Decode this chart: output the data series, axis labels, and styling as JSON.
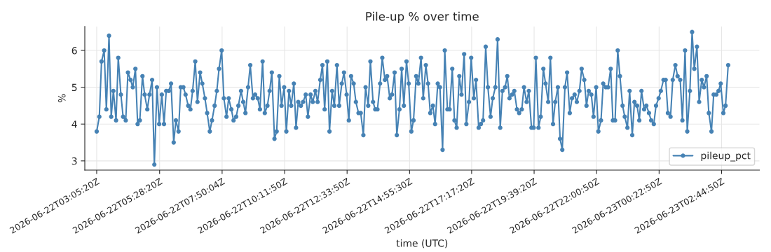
{
  "chart_data": {
    "type": "line",
    "title": "Pile-up % over time",
    "xlabel": "time (UTC)",
    "ylabel": "%",
    "x": [
      "2026-06-22T03:05",
      "2026-06-22T03:11",
      "2026-06-22T03:16",
      "2026-06-22T03:22",
      "2026-06-22T03:27",
      "2026-06-22T03:33",
      "2026-06-22T03:38",
      "2026-06-22T03:43",
      "2026-06-22T03:49",
      "2026-06-22T03:54",
      "2026-06-22T04:00",
      "2026-06-22T04:05",
      "2026-06-22T04:11",
      "2026-06-22T04:16",
      "2026-06-22T04:22",
      "2026-06-22T04:27",
      "2026-06-22T04:33",
      "2026-06-22T04:38",
      "2026-06-22T04:43",
      "2026-06-22T04:49",
      "2026-06-22T04:54",
      "2026-06-22T05:00",
      "2026-06-22T05:05",
      "2026-06-22T05:11",
      "2026-06-22T05:16",
      "2026-06-22T05:22",
      "2026-06-22T05:27",
      "2026-06-22T05:33",
      "2026-06-22T05:38",
      "2026-06-22T05:43",
      "2026-06-22T05:49",
      "2026-06-22T05:54",
      "2026-06-22T06:00",
      "2026-06-22T06:05",
      "2026-06-22T06:11",
      "2026-06-22T06:16",
      "2026-06-22T06:22",
      "2026-06-22T06:27",
      "2026-06-22T06:33",
      "2026-06-22T06:38",
      "2026-06-22T06:43",
      "2026-06-22T06:49",
      "2026-06-22T06:54",
      "2026-06-22T07:00",
      "2026-06-22T07:05",
      "2026-06-22T07:11",
      "2026-06-22T07:16",
      "2026-06-22T07:22",
      "2026-06-22T07:27",
      "2026-06-22T07:33",
      "2026-06-22T07:38",
      "2026-06-22T07:43",
      "2026-06-22T07:49",
      "2026-06-22T07:54",
      "2026-06-22T08:00",
      "2026-06-22T08:05",
      "2026-06-22T08:11",
      "2026-06-22T08:16",
      "2026-06-22T08:22",
      "2026-06-22T08:27",
      "2026-06-22T08:33",
      "2026-06-22T08:38",
      "2026-06-22T08:43",
      "2026-06-22T08:49",
      "2026-06-22T08:54",
      "2026-06-22T09:00",
      "2026-06-22T09:05",
      "2026-06-22T09:11",
      "2026-06-22T09:16",
      "2026-06-22T09:22",
      "2026-06-22T09:27",
      "2026-06-22T09:33",
      "2026-06-22T09:38",
      "2026-06-22T09:43",
      "2026-06-22T09:49",
      "2026-06-22T09:54",
      "2026-06-22T10:00",
      "2026-06-22T10:05",
      "2026-06-22T10:11",
      "2026-06-22T10:16",
      "2026-06-22T10:22",
      "2026-06-22T10:27",
      "2026-06-22T10:33",
      "2026-06-22T10:38",
      "2026-06-22T10:43",
      "2026-06-22T10:49",
      "2026-06-22T10:54",
      "2026-06-22T11:00",
      "2026-06-22T11:05",
      "2026-06-22T11:11",
      "2026-06-22T11:16",
      "2026-06-22T11:22",
      "2026-06-22T11:27",
      "2026-06-22T11:33",
      "2026-06-22T11:38",
      "2026-06-22T11:43",
      "2026-06-22T11:49",
      "2026-06-22T11:54",
      "2026-06-22T12:00",
      "2026-06-22T12:05",
      "2026-06-22T12:11",
      "2026-06-22T12:16",
      "2026-06-22T12:22",
      "2026-06-22T12:27",
      "2026-06-22T12:33",
      "2026-06-22T12:38",
      "2026-06-22T12:43",
      "2026-06-22T12:49",
      "2026-06-22T12:54",
      "2026-06-22T13:00",
      "2026-06-22T13:05",
      "2026-06-22T13:11",
      "2026-06-22T13:16",
      "2026-06-22T13:22",
      "2026-06-22T13:27",
      "2026-06-22T13:33",
      "2026-06-22T13:38",
      "2026-06-22T13:43",
      "2026-06-22T13:49",
      "2026-06-22T13:54",
      "2026-06-22T14:00",
      "2026-06-22T14:05",
      "2026-06-22T14:11",
      "2026-06-22T14:16",
      "2026-06-22T14:22",
      "2026-06-22T14:27",
      "2026-06-22T14:33",
      "2026-06-22T14:38",
      "2026-06-22T14:43",
      "2026-06-22T14:49",
      "2026-06-22T14:54",
      "2026-06-22T15:00",
      "2026-06-22T15:05",
      "2026-06-22T15:11",
      "2026-06-22T15:16",
      "2026-06-22T15:22",
      "2026-06-22T15:27",
      "2026-06-22T15:33",
      "2026-06-22T15:38",
      "2026-06-22T15:43",
      "2026-06-22T15:49",
      "2026-06-22T15:54",
      "2026-06-22T16:00",
      "2026-06-22T16:05",
      "2026-06-22T16:11",
      "2026-06-22T16:16",
      "2026-06-22T16:22",
      "2026-06-22T16:27",
      "2026-06-22T16:33",
      "2026-06-22T16:38",
      "2026-06-22T16:43",
      "2026-06-22T16:49",
      "2026-06-22T16:54",
      "2026-06-22T17:00",
      "2026-06-22T17:05",
      "2026-06-22T17:11",
      "2026-06-22T17:16",
      "2026-06-22T17:22",
      "2026-06-22T17:27",
      "2026-06-22T17:33",
      "2026-06-22T17:38",
      "2026-06-22T17:43",
      "2026-06-22T17:49",
      "2026-06-22T17:54",
      "2026-06-22T18:00",
      "2026-06-22T18:05",
      "2026-06-22T18:11",
      "2026-06-22T18:16",
      "2026-06-22T18:22",
      "2026-06-22T18:27",
      "2026-06-22T18:33",
      "2026-06-22T18:38",
      "2026-06-22T18:43",
      "2026-06-22T18:49",
      "2026-06-22T18:54",
      "2026-06-22T19:00",
      "2026-06-22T19:05",
      "2026-06-22T19:11",
      "2026-06-22T19:16",
      "2026-06-22T19:22",
      "2026-06-22T19:27",
      "2026-06-22T19:33",
      "2026-06-22T19:38",
      "2026-06-22T19:43",
      "2026-06-22T19:49",
      "2026-06-22T19:54",
      "2026-06-22T20:00",
      "2026-06-22T20:05",
      "2026-06-22T20:11",
      "2026-06-22T20:16",
      "2026-06-22T20:22",
      "2026-06-22T20:27",
      "2026-06-22T20:33",
      "2026-06-22T20:38",
      "2026-06-22T20:43",
      "2026-06-22T20:49",
      "2026-06-22T20:54",
      "2026-06-22T21:00",
      "2026-06-22T21:05",
      "2026-06-22T21:11",
      "2026-06-22T21:16",
      "2026-06-22T21:22",
      "2026-06-22T21:27",
      "2026-06-22T21:33",
      "2026-06-22T21:38",
      "2026-06-22T21:43",
      "2026-06-22T21:49",
      "2026-06-22T21:54",
      "2026-06-22T22:00",
      "2026-06-22T22:05",
      "2026-06-22T22:11",
      "2026-06-22T22:16",
      "2026-06-22T22:22",
      "2026-06-22T22:27",
      "2026-06-22T22:33",
      "2026-06-22T22:38",
      "2026-06-22T22:43",
      "2026-06-22T22:49",
      "2026-06-22T22:54",
      "2026-06-22T23:00",
      "2026-06-22T23:05",
      "2026-06-22T23:11",
      "2026-06-22T23:16",
      "2026-06-22T23:22",
      "2026-06-22T23:27",
      "2026-06-22T23:33",
      "2026-06-22T23:38",
      "2026-06-22T23:43",
      "2026-06-22T23:49",
      "2026-06-22T23:54",
      "2026-06-23T00:00",
      "2026-06-23T00:05",
      "2026-06-23T00:11",
      "2026-06-23T00:16",
      "2026-06-23T00:22",
      "2026-06-23T00:27",
      "2026-06-23T00:33",
      "2026-06-23T00:38",
      "2026-06-23T00:43",
      "2026-06-23T00:49",
      "2026-06-23T00:54",
      "2026-06-23T01:00",
      "2026-06-23T01:05",
      "2026-06-23T01:11",
      "2026-06-23T01:16",
      "2026-06-23T01:22",
      "2026-06-23T01:27",
      "2026-06-23T01:33",
      "2026-06-23T01:38",
      "2026-06-23T01:43",
      "2026-06-23T01:49",
      "2026-06-23T01:54",
      "2026-06-23T02:00",
      "2026-06-23T02:05",
      "2026-06-23T02:11",
      "2026-06-23T02:16",
      "2026-06-23T02:22",
      "2026-06-23T02:27",
      "2026-06-23T02:33",
      "2026-06-23T02:38",
      "2026-06-23T02:43",
      "2026-06-23T02:49",
      "2026-06-23T02:54",
      "2026-06-23T03:00"
    ],
    "series": [
      {
        "name": "pileup_pct",
        "color": "#4682b4",
        "values": [
          3.8,
          4.2,
          5.7,
          6.0,
          4.4,
          6.4,
          4.2,
          4.9,
          4.1,
          5.8,
          4.8,
          4.2,
          4.1,
          5.4,
          5.2,
          5.0,
          5.5,
          4.0,
          4.1,
          5.3,
          4.8,
          4.4,
          4.8,
          5.2,
          2.9,
          5.0,
          4.0,
          4.8,
          4.0,
          4.9,
          4.9,
          5.1,
          3.5,
          4.1,
          3.8,
          5.0,
          5.0,
          4.8,
          4.5,
          4.4,
          4.9,
          5.7,
          4.6,
          5.4,
          5.1,
          4.7,
          4.3,
          3.8,
          4.1,
          4.5,
          4.9,
          5.5,
          6.0,
          4.7,
          4.2,
          4.7,
          4.4,
          4.1,
          4.2,
          4.5,
          4.9,
          4.6,
          4.3,
          5.0,
          5.6,
          4.7,
          4.8,
          4.7,
          4.4,
          5.7,
          4.3,
          4.5,
          4.9,
          5.4,
          3.6,
          3.8,
          5.3,
          4.5,
          5.0,
          3.8,
          4.9,
          4.5,
          5.1,
          3.9,
          4.6,
          4.5,
          4.6,
          4.8,
          4.2,
          4.8,
          4.6,
          4.9,
          4.6,
          5.2,
          5.6,
          4.4,
          5.7,
          3.8,
          4.9,
          4.5,
          5.6,
          4.5,
          5.1,
          5.4,
          4.8,
          4.1,
          5.3,
          5.1,
          4.6,
          4.3,
          4.3,
          3.7,
          5.0,
          4.5,
          5.7,
          4.6,
          4.4,
          4.4,
          5.1,
          5.8,
          5.2,
          5.3,
          4.7,
          4.8,
          5.4,
          3.7,
          4.4,
          5.5,
          4.5,
          5.7,
          5.1,
          3.8,
          4.1,
          5.3,
          5.1,
          5.8,
          4.7,
          5.6,
          5.1,
          4.3,
          4.5,
          4.0,
          5.1,
          5.0,
          3.3,
          6.0,
          4.4,
          4.4,
          5.5,
          4.1,
          3.9,
          5.3,
          4.8,
          5.9,
          4.0,
          4.6,
          5.8,
          4.7,
          5.2,
          3.9,
          4.0,
          4.1,
          6.1,
          5.0,
          4.2,
          4.7,
          5.0,
          6.3,
          3.9,
          4.9,
          5.0,
          5.3,
          4.7,
          4.8,
          4.9,
          4.4,
          4.3,
          4.4,
          5.0,
          4.6,
          4.9,
          3.9,
          3.9,
          5.8,
          3.9,
          4.2,
          5.5,
          5.1,
          4.6,
          5.8,
          4.0,
          4.6,
          5.0,
          3.6,
          3.3,
          5.0,
          5.4,
          4.3,
          4.7,
          4.8,
          4.6,
          4.9,
          5.5,
          5.2,
          4.5,
          4.9,
          4.8,
          4.2,
          5.0,
          3.8,
          4.1,
          5.1,
          5.0,
          5.0,
          5.5,
          4.1,
          4.1,
          6.0,
          5.3,
          4.5,
          4.2,
          3.9,
          4.9,
          3.7,
          4.6,
          4.5,
          4.1,
          4.9,
          4.4,
          4.5,
          4.3,
          4.1,
          4.0,
          4.5,
          4.7,
          4.9,
          5.2,
          5.2,
          4.3,
          4.2,
          5.2,
          5.6,
          5.3,
          5.2,
          4.1,
          6.0,
          3.8,
          4.9,
          6.5,
          5.5,
          6.1,
          4.6,
          5.2,
          5.0,
          5.3,
          4.3,
          3.8,
          4.8,
          4.8,
          4.9,
          5.1,
          4.3,
          4.5,
          5.6
        ]
      }
    ],
    "xlim": [
      "2026-06-22T02:38",
      "2026-06-23T04:11"
    ],
    "xticks": [
      {
        "value": "2026-06-22T03:05",
        "label": "2026-06-22T03:05:20Z"
      },
      {
        "value": "2026-06-22T05:28",
        "label": "2026-06-22T05:28:20Z"
      },
      {
        "value": "2026-06-22T07:50",
        "label": "2026-06-22T07:50:04Z"
      },
      {
        "value": "2026-06-22T10:12",
        "label": "2026-06-22T10:11:50Z"
      },
      {
        "value": "2026-06-22T12:34",
        "label": "2026-06-22T12:33:50Z"
      },
      {
        "value": "2026-06-22T14:56",
        "label": "2026-06-22T14:55:30Z"
      },
      {
        "value": "2026-06-22T17:17",
        "label": "2026-06-22T17:17:20Z"
      },
      {
        "value": "2026-06-22T19:39",
        "label": "2026-06-22T19:39:20Z"
      },
      {
        "value": "2026-06-22T22:01",
        "label": "2026-06-22T22:00:50Z"
      },
      {
        "value": "2026-06-23T00:23",
        "label": "2026-06-23T00:22:50Z"
      },
      {
        "value": "2026-06-23T02:45",
        "label": "2026-06-23T02:44:50Z"
      }
    ],
    "ylim": [
      2.75,
      6.65
    ],
    "yticks": [
      3,
      4,
      5,
      6
    ],
    "grid": true,
    "legend": "bottom right",
    "marker": "circle",
    "line_style": "solid"
  }
}
